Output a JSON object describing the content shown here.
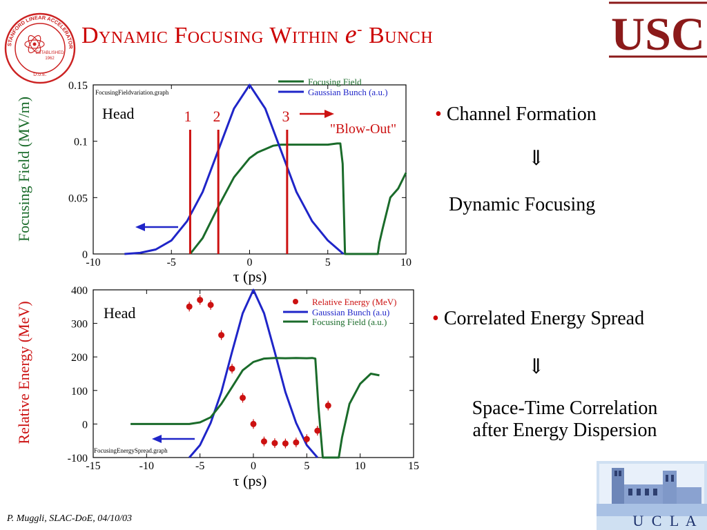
{
  "slide": {
    "title": "Dynamic Focusing Within e- Bunch",
    "title_main": "Dynamic Focusing Within ",
    "title_e": "e",
    "title_sup": "-",
    "title_end": " Bunch",
    "footer": "P. Muggli, SLAC-DoE, 04/10/03",
    "usc_logo": "USC",
    "ucla_logo": "U C L A",
    "seal": {
      "top": "STANFORD LINEAR ACCELERATOR CENTER",
      "established": "ESTABLISHED",
      "year": "1962",
      "bottom": "D.o.E."
    }
  },
  "bullets": {
    "item1": "Channel Formation",
    "arrow1": "⇓",
    "result1": "Dynamic Focusing",
    "item2": "Correlated Energy Spread",
    "arrow2": "⇓",
    "result2_line1": "Space-Time Correlation",
    "result2_line2": "after Energy Dispersion"
  },
  "colors": {
    "title": "#cc0000",
    "green": "#1a6b2a",
    "blue": "#1f25c8",
    "red": "#cc1111",
    "usc": "#8b1a1a"
  },
  "chart_data": [
    {
      "type": "line",
      "ylabel": "Focusing Field (MV/m)",
      "xlabel": "τ (ps)",
      "xlim": [
        -10,
        10
      ],
      "ylim": [
        0,
        0.15
      ],
      "xticks": [
        "-10",
        "-5",
        "0",
        "5",
        "10"
      ],
      "yticks": [
        "0",
        "0.05",
        "0.1",
        "0.15"
      ],
      "filename": "FocusingFieldvariation.graph",
      "annotations": {
        "head": "Head",
        "m1": "1",
        "m2": "2",
        "m3": "3",
        "blowout": "\"Blow-Out\""
      },
      "markers_x": [
        -3.8,
        -2.0,
        2.4
      ],
      "series": [
        {
          "name": "Focusing Field",
          "color": "#1a6b2a",
          "x": [
            -3.8,
            -3,
            -2,
            -1,
            0,
            0.5,
            1,
            1.5,
            2,
            3,
            4,
            5,
            5.6,
            5.8,
            5.95,
            6.1,
            8.2,
            8.3,
            8.5,
            9,
            9.5,
            10
          ],
          "y": [
            0.0,
            0.014,
            0.042,
            0.068,
            0.085,
            0.09,
            0.093,
            0.096,
            0.097,
            0.097,
            0.097,
            0.097,
            0.098,
            0.098,
            0.08,
            0.0,
            0.0,
            0.01,
            0.022,
            0.05,
            0.058,
            0.072
          ]
        },
        {
          "name": "Gaussian Bunch (a.u.)",
          "color": "#1f25c8",
          "x": [
            -8,
            -7,
            -6,
            -5,
            -4,
            -3,
            -2,
            -1,
            0,
            1,
            2,
            3,
            4,
            5,
            6
          ],
          "y": [
            0.0,
            0.001,
            0.004,
            0.012,
            0.029,
            0.055,
            0.092,
            0.129,
            0.15,
            0.129,
            0.092,
            0.055,
            0.029,
            0.012,
            0.0
          ]
        }
      ]
    },
    {
      "type": "scatter",
      "ylabel": "Relative Energy (MeV)",
      "xlabel": "τ (ps)",
      "xlim": [
        -15,
        15
      ],
      "ylim": [
        -100,
        400
      ],
      "xticks": [
        "-15",
        "-10",
        "-5",
        "0",
        "5",
        "10",
        "15"
      ],
      "yticks": [
        "-100",
        "0",
        "100",
        "200",
        "300",
        "400"
      ],
      "filename": "FocusingEnergySpread.graph",
      "annotations": {
        "head": "Head"
      },
      "series": [
        {
          "name": "Relative Energy (MeV)",
          "color": "#cc1111",
          "x": [
            -6,
            -5,
            -4,
            -3,
            -2,
            -1,
            0,
            1,
            2,
            3,
            4,
            5,
            6,
            7
          ],
          "y": [
            350,
            370,
            355,
            265,
            165,
            78,
            0,
            -52,
            -57,
            -58,
            -55,
            -45,
            -20,
            55
          ]
        },
        {
          "name": "Gaussian Bunch (a.u)",
          "color": "#1f25c8",
          "x": [
            -6,
            -5,
            -4,
            -3,
            -2,
            -1,
            0,
            1,
            2,
            3,
            4,
            5,
            6
          ],
          "y": [
            -100,
            -63,
            3,
            95,
            215,
            330,
            400,
            330,
            215,
            95,
            3,
            -63,
            -100
          ]
        },
        {
          "name": "Focusing Field (a.u.)",
          "color": "#1a6b2a",
          "x": [
            -11.5,
            -8,
            -6,
            -5,
            -4,
            -3,
            -2,
            -1,
            0,
            1,
            2,
            3,
            4,
            5,
            5.5,
            5.8,
            6.1,
            6.5,
            7.3,
            8,
            8.3,
            9,
            10,
            11,
            11.8
          ],
          "y": [
            0,
            0,
            0,
            5,
            20,
            60,
            110,
            160,
            185,
            195,
            197,
            196,
            197,
            196,
            197,
            195,
            50,
            -100,
            -100,
            -100,
            -40,
            60,
            120,
            150,
            145
          ]
        }
      ]
    }
  ]
}
